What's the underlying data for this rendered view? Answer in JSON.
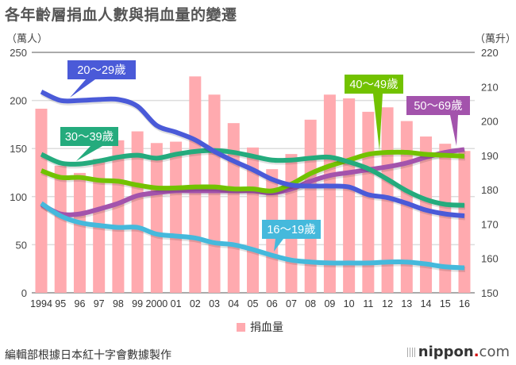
{
  "page": {
    "title": "各年齡層捐血人數與捐血量的變遷",
    "unit_left": "（萬人）",
    "unit_right": "（萬升）",
    "source": "編輯部根據日本紅十字會數據製作",
    "brand": {
      "name": "nippon",
      "dot": ".",
      "suffix": "com"
    },
    "legend_label": "捐血量"
  },
  "colors": {
    "bar": "#ffaaaf",
    "age_16_19": "#45b9dc",
    "age_20_29": "#4a5ad8",
    "age_30_39": "#24ab7d",
    "age_40_49": "#72c200",
    "age_50_69": "#a353ac"
  },
  "chart_data": {
    "type": "bar+line",
    "title": "各年齡層捐血人數與捐血量的變遷",
    "x": [
      "1994",
      "95",
      "96",
      "97",
      "98",
      "99",
      "2000",
      "01",
      "02",
      "03",
      "04",
      "05",
      "06",
      "07",
      "08",
      "09",
      "10",
      "11",
      "12",
      "13",
      "14",
      "15",
      "16"
    ],
    "left_axis": {
      "label": "（萬人）",
      "range": [
        0,
        250
      ],
      "ticks": [
        0,
        50,
        100,
        150,
        200,
        250
      ]
    },
    "right_axis": {
      "label": "（萬升）",
      "range": [
        150,
        220
      ],
      "ticks": [
        150,
        160,
        170,
        180,
        190,
        200,
        210,
        220
      ]
    },
    "bars": {
      "name": "捐血量",
      "axis": "right",
      "values": [
        203.6,
        187,
        184.9,
        189,
        194.4,
        197,
        193.6,
        194,
        213,
        207.7,
        199.4,
        192.3,
        186,
        190.4,
        200.4,
        207.7,
        206.6,
        202.7,
        204,
        200,
        195.5,
        193.4,
        191.3
      ]
    },
    "series": [
      {
        "name": "20～29歲",
        "key": "age_20_29",
        "axis": "left",
        "values": [
          209,
          200,
          200,
          201,
          201,
          194,
          174,
          167,
          159,
          147,
          137,
          128,
          118,
          112,
          111,
          111,
          110,
          102,
          99,
          93,
          86,
          82,
          80
        ],
        "label_index": 2
      },
      {
        "name": "30～39歲",
        "key": "age_30_39",
        "axis": "left",
        "values": [
          144,
          135,
          134,
          137,
          141,
          143,
          140,
          144,
          147,
          148,
          146,
          142,
          138,
          138,
          140,
          141,
          136,
          129,
          118,
          106,
          97,
          92,
          91
        ],
        "label_index": 2
      },
      {
        "name": "40～49歲",
        "key": "age_40_49",
        "axis": "left",
        "values": [
          127,
          120,
          120,
          117,
          116,
          112,
          109,
          109,
          110,
          110,
          108,
          108,
          106,
          113,
          124,
          132,
          138,
          144,
          146,
          146,
          144,
          143,
          142
        ],
        "label_index": 17
      },
      {
        "name": "50～69歲",
        "key": "age_50_69",
        "axis": "left",
        "values": [
          92,
          82,
          82,
          87,
          93,
          101,
          104,
          106,
          106,
          106,
          106,
          106,
          104,
          108,
          116,
          122,
          125,
          128,
          131,
          135,
          141,
          146,
          149
        ],
        "label_index": 22
      },
      {
        "name": "16～19歲",
        "key": "age_16_19",
        "axis": "left",
        "values": [
          93,
          80,
          73,
          70,
          68,
          68,
          61,
          59,
          57,
          52,
          50,
          45,
          39,
          34,
          32,
          31,
          31,
          31,
          32,
          32,
          30,
          27,
          26
        ],
        "label_index": 12
      }
    ],
    "legend": [
      "捐血量"
    ],
    "grid": true
  }
}
